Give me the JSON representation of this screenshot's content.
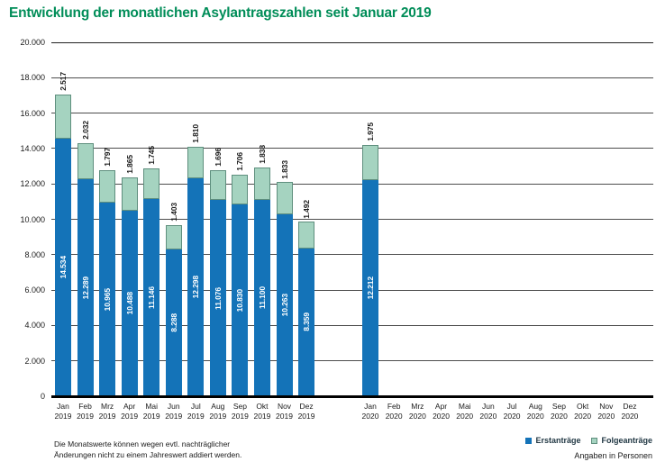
{
  "title": "Entwicklung der monatlichen Asylantragszahlen seit Januar 2019",
  "footnote": {
    "line1": "Die Monatswerte können wegen evtl. nachträglicher",
    "line2": "Änderungen nicht zu einem Jahreswert addiert werden."
  },
  "units_note": "Angaben in Personen",
  "legend": {
    "items": [
      {
        "label": "Erstanträge",
        "color": "#1473b8"
      },
      {
        "label": "Folgeanträge",
        "color": "#a5d3c0"
      }
    ],
    "position": "bottom-right"
  },
  "colors": {
    "title_green": "#008d58",
    "erstantraege_blue": "#1473b8",
    "folgeantraege_green": "#a5d3c0",
    "folgeantraege_border": "#5f8f7e",
    "gridline_gray": "#4d4d4d",
    "axis_black": "#000000",
    "bar_value_label": "#ffffff",
    "text_dark": "#1a1a1a"
  },
  "chart_data": {
    "type": "bar",
    "stacked": true,
    "title": "Entwicklung der monatlichen Asylantragszahlen seit Januar 2019",
    "xlabel": "",
    "ylabel": "",
    "ylim": [
      0,
      20000
    ],
    "ytick_step": 2000,
    "ytick_labels": [
      "0",
      "2.000",
      "4.000",
      "6.000",
      "8.000",
      "10.000",
      "12.000",
      "14.000",
      "16.000",
      "18.000",
      "20.000"
    ],
    "grid": true,
    "legend_position": "bottom-right",
    "categories_month": [
      "Jan",
      "Feb",
      "Mrz",
      "Apr",
      "Mai",
      "Jun",
      "Jul",
      "Aug",
      "Sep",
      "Okt",
      "Nov",
      "Dez",
      "Jan",
      "Feb",
      "Mrz",
      "Apr",
      "Mai",
      "Jun",
      "Jul",
      "Aug",
      "Sep",
      "Okt",
      "Nov",
      "Dez"
    ],
    "categories_year": [
      "2019",
      "2019",
      "2019",
      "2019",
      "2019",
      "2019",
      "2019",
      "2019",
      "2019",
      "2019",
      "2019",
      "2019",
      "2020",
      "2020",
      "2020",
      "2020",
      "2020",
      "2020",
      "2020",
      "2020",
      "2020",
      "2020",
      "2020",
      "2020"
    ],
    "series": [
      {
        "name": "Erstanträge",
        "color": "#1473b8",
        "values": [
          14534,
          12289,
          10965,
          10488,
          11146,
          8288,
          12298,
          11076,
          10830,
          11100,
          10263,
          8359,
          12212,
          null,
          null,
          null,
          null,
          null,
          null,
          null,
          null,
          null,
          null,
          null
        ]
      },
      {
        "name": "Folgeanträge",
        "color": "#a5d3c0",
        "values": [
          2517,
          2032,
          1797,
          1865,
          1745,
          1403,
          1810,
          1696,
          1706,
          1838,
          1833,
          1492,
          1975,
          null,
          null,
          null,
          null,
          null,
          null,
          null,
          null,
          null,
          null,
          null
        ]
      }
    ]
  }
}
